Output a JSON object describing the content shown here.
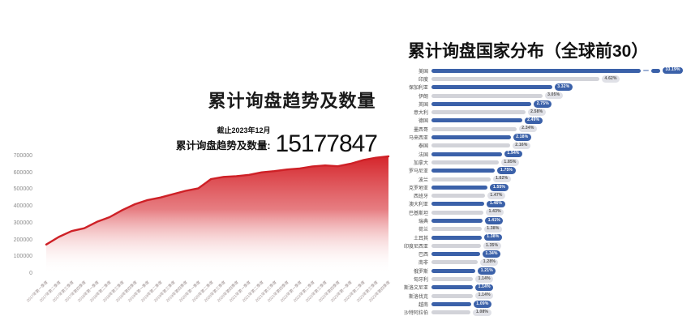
{
  "chart_data": [
    {
      "type": "area",
      "title": "累计询盘趋势及数量",
      "annotation": {
        "date_note": "截止2023年12月",
        "label": "累计询盘趋势及数量:",
        "value": "15177847"
      },
      "x": [
        "2017年第一季度",
        "2017年第二季度",
        "2017年第三季度",
        "2017年第四季度",
        "2018年第一季度",
        "2018年第二季度",
        "2018年第三季度",
        "2018年第四季度",
        "2019年第一季度",
        "2019年第二季度",
        "2019年第三季度",
        "2019年第四季度",
        "2020年第一季度",
        "2020年第二季度",
        "2020年第三季度",
        "2020年第四季度",
        "2021年第一季度",
        "2021年第二季度",
        "2021年第三季度",
        "2021年第四季度",
        "2022年第一季度",
        "2022年第二季度",
        "2022年第三季度",
        "2022年第四季度",
        "2023年第一季度",
        "2023年第二季度",
        "2023年第三季度",
        "2023年第四季度"
      ],
      "values": [
        175000,
        220000,
        255000,
        272000,
        310000,
        338000,
        380000,
        415000,
        440000,
        455000,
        475000,
        495000,
        510000,
        565000,
        578000,
        582000,
        590000,
        605000,
        612000,
        622000,
        628000,
        640000,
        646000,
        641000,
        656000,
        678000,
        692000,
        700000
      ],
      "ylim": [
        0,
        700000
      ],
      "yticks": [
        "0",
        "100000",
        "200000",
        "300000",
        "400000",
        "500000",
        "600000",
        "700000"
      ],
      "grid": false,
      "line_color": "#ce2026",
      "fill_gradient_top": "#d5252b",
      "fill_gradient_bottom": "#ffffff"
    },
    {
      "type": "bar",
      "orientation": "horizontal",
      "title": "累计询盘国家分布（全球前30）",
      "categories": [
        "美国",
        "印度",
        "保加利亚",
        "伊朗",
        "英国",
        "意大利",
        "德国",
        "墨西哥",
        "马来西亚",
        "泰国",
        "法国",
        "加拿大",
        "罗马尼亚",
        "波兰",
        "克罗地亚",
        "西班牙",
        "澳大利亚",
        "巴基斯坦",
        "瑞典",
        "荷兰",
        "土耳其",
        "印度尼西亚",
        "巴西",
        "南非",
        "俄罗斯",
        "匈牙利",
        "斯洛文尼亚",
        "斯洛伐克",
        "越南",
        "沙特阿拉伯"
      ],
      "values": [
        33.19,
        4.62,
        3.32,
        3.05,
        2.75,
        2.58,
        2.49,
        2.34,
        2.18,
        2.16,
        1.94,
        1.85,
        1.75,
        1.62,
        1.55,
        1.47,
        1.46,
        1.43,
        1.41,
        1.38,
        1.38,
        1.35,
        1.34,
        1.28,
        1.21,
        1.14,
        1.14,
        1.14,
        1.09,
        1.08
      ],
      "labels": [
        "33.19%",
        "4.62%",
        "3.32%",
        "3.05%",
        "2.75%",
        "2.58%",
        "2.49%",
        "2.34%",
        "2.18%",
        "2.16%",
        "1.94%",
        "1.85%",
        "1.75%",
        "1.62%",
        "1.55%",
        "1.47%",
        "1.46%",
        "1.43%",
        "1.41%",
        "1.38%",
        "1.38%",
        "1.35%",
        "1.34%",
        "1.28%",
        "1.21%",
        "1.14%",
        "1.14%",
        "1.14%",
        "1.09%",
        "1.08%"
      ],
      "axis_break_on_first_bar": true,
      "legend": false,
      "colors": {
        "blue": "#3b61a9",
        "gray": "#d2d3d9",
        "pill_gray_bg": "#e0e1e7",
        "pill_gray_text": "#555555",
        "pill_blue_text": "#ffffff"
      }
    }
  ]
}
